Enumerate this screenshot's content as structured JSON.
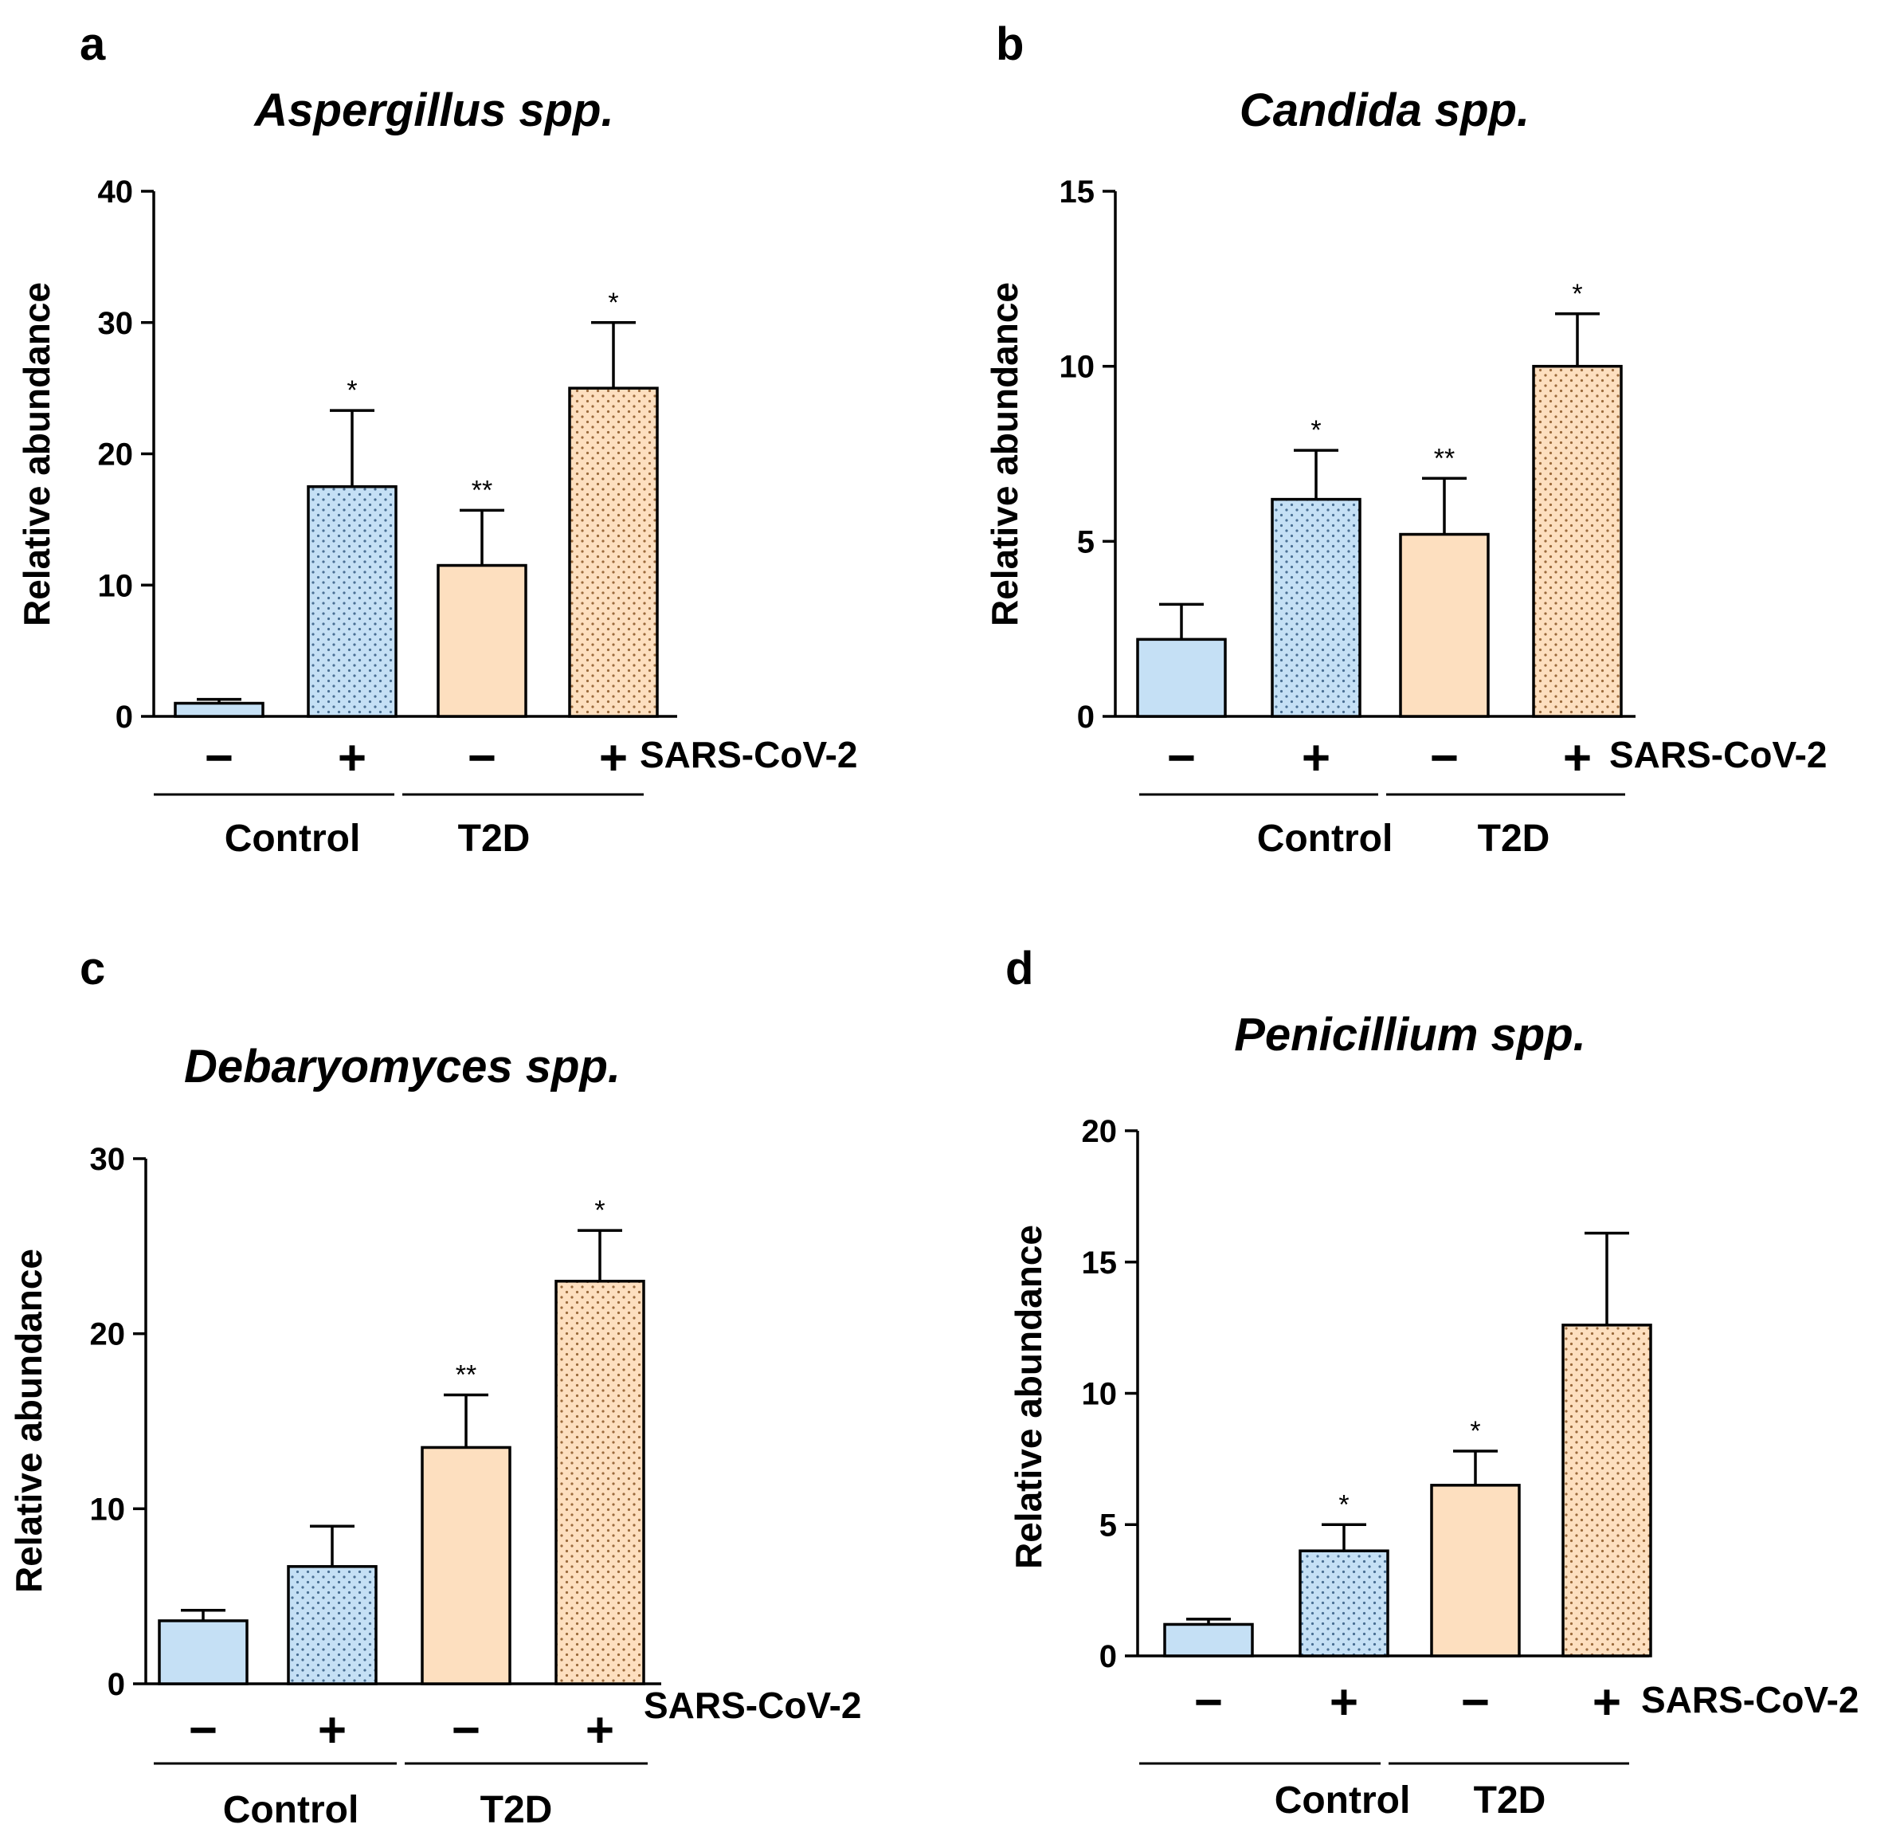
{
  "chart_data": [
    {
      "panel": "a",
      "type": "bar",
      "title": "Aspergillus spp.",
      "ylabel": "Relative abundance",
      "xlabel": "",
      "ylim": [
        0,
        40
      ],
      "yticks": [
        "0",
        "10",
        "20",
        "30",
        "40"
      ],
      "categories": [
        "−",
        "+",
        "−",
        "+"
      ],
      "groups": [
        "Control",
        "T2D"
      ],
      "treatment_label": "SARS-CoV-2",
      "values": [
        1.0,
        17.5,
        11.5,
        25.0
      ],
      "errors": [
        0.3,
        5.8,
        4.2,
        5.0
      ],
      "significance": [
        "",
        "*",
        "**",
        "*"
      ]
    },
    {
      "panel": "b",
      "type": "bar",
      "title": "Candida spp.",
      "ylabel": "Relative abundance",
      "xlabel": "",
      "ylim": [
        0,
        15
      ],
      "yticks": [
        "0",
        "5",
        "10",
        "15"
      ],
      "categories": [
        "−",
        "+",
        "−",
        "+"
      ],
      "groups": [
        "Control",
        "T2D"
      ],
      "treatment_label": "SARS-CoV-2",
      "values": [
        2.2,
        6.2,
        5.2,
        10.0
      ],
      "errors": [
        1.0,
        1.4,
        1.6,
        1.5
      ],
      "significance": [
        "",
        "*",
        "**",
        "*"
      ]
    },
    {
      "panel": "c",
      "type": "bar",
      "title": "Debaryomyces spp.",
      "ylabel": "Relative abundance",
      "xlabel": "",
      "ylim": [
        0,
        30
      ],
      "yticks": [
        "0",
        "10",
        "20",
        "30"
      ],
      "categories": [
        "−",
        "+",
        "−",
        "+"
      ],
      "groups": [
        "Control",
        "T2D"
      ],
      "treatment_label": "SARS-CoV-2",
      "values": [
        3.6,
        6.7,
        13.5,
        23.0
      ],
      "errors": [
        0.6,
        2.3,
        3.0,
        2.9
      ],
      "significance": [
        "",
        "",
        "**",
        "*"
      ]
    },
    {
      "panel": "d",
      "type": "bar",
      "title": "Penicillium spp.",
      "ylabel": "Relative abundance",
      "xlabel": "",
      "ylim": [
        0,
        20
      ],
      "yticks": [
        "0",
        "5",
        "10",
        "15",
        "20"
      ],
      "categories": [
        "−",
        "+",
        "−",
        "+"
      ],
      "groups": [
        "Control",
        "T2D"
      ],
      "treatment_label": "SARS-CoV-2",
      "values": [
        1.2,
        4.0,
        6.5,
        12.6
      ],
      "errors": [
        0.2,
        1.0,
        1.3,
        3.5
      ],
      "significance": [
        "",
        "*",
        "*",
        ""
      ]
    }
  ],
  "colors": {
    "control": "#c5e0f5",
    "t2d": "#fddfbf",
    "stroke": "#000000",
    "dot": "#555555"
  }
}
